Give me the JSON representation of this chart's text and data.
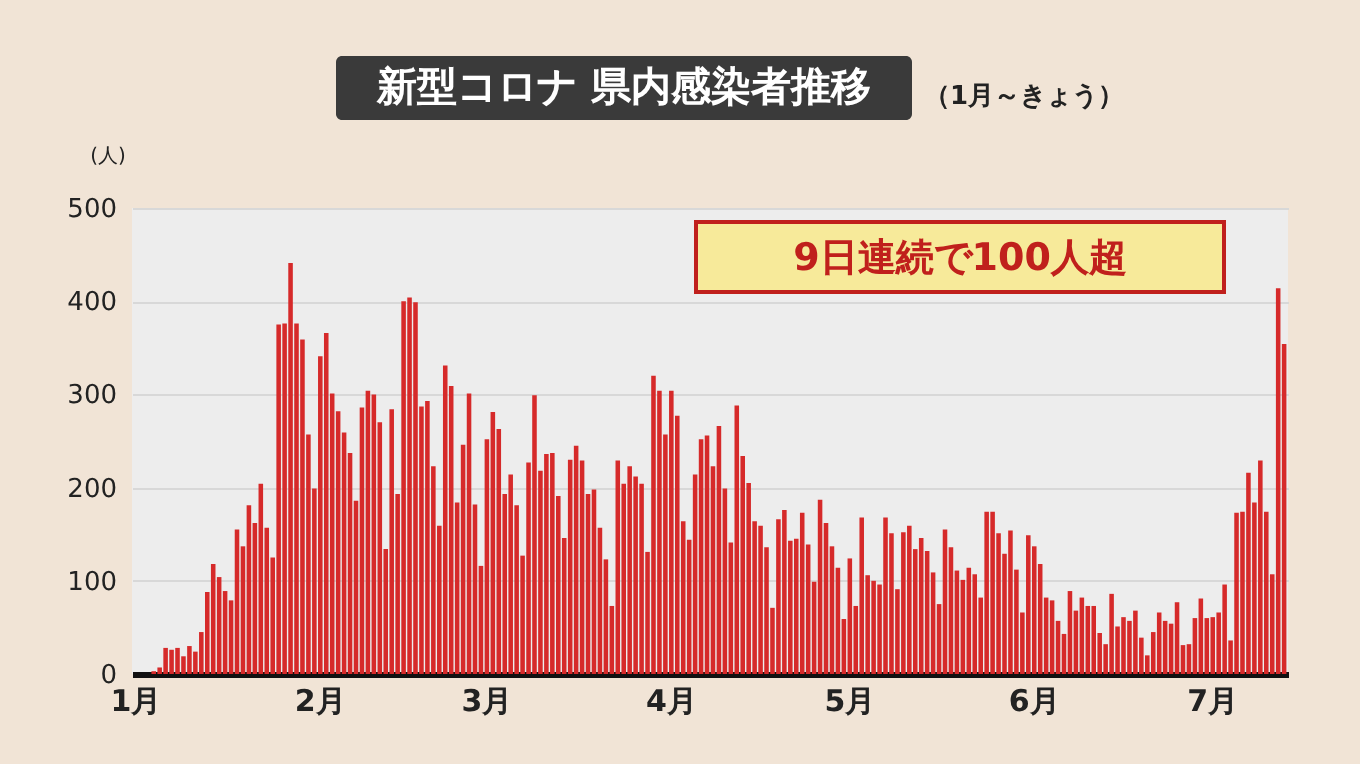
{
  "chart_data": {
    "type": "bar",
    "title": "新型コロナ 県内感染者推移",
    "subtitle": "（1月～きょう）",
    "ylabel": "(人)",
    "annotations": [
      "9日連続で100人超"
    ],
    "categories": [
      "1月",
      null,
      null,
      null,
      null,
      null,
      null,
      null,
      null,
      null,
      null,
      null,
      null,
      null,
      null,
      null,
      null,
      null,
      null,
      null,
      null,
      null,
      null,
      null,
      null,
      null,
      null,
      null,
      null,
      null,
      null,
      "2月",
      null,
      null,
      null,
      null,
      null,
      null,
      null,
      null,
      null,
      null,
      null,
      null,
      null,
      null,
      null,
      null,
      null,
      null,
      null,
      null,
      null,
      null,
      null,
      null,
      null,
      null,
      null,
      "3月",
      null,
      null,
      null,
      null,
      null,
      null,
      null,
      null,
      null,
      null,
      null,
      null,
      null,
      null,
      null,
      null,
      null,
      null,
      null,
      null,
      null,
      null,
      null,
      null,
      null,
      null,
      null,
      null,
      null,
      null,
      "4月",
      null,
      null,
      null,
      null,
      null,
      null,
      null,
      null,
      null,
      null,
      null,
      null,
      null,
      null,
      null,
      null,
      null,
      null,
      null,
      null,
      null,
      null,
      null,
      null,
      null,
      null,
      null,
      null,
      null,
      "5月",
      null,
      null,
      null,
      null,
      null,
      null,
      null,
      null,
      null,
      null,
      null,
      null,
      null,
      null,
      null,
      null,
      null,
      null,
      null,
      null,
      null,
      null,
      null,
      null,
      null,
      null,
      null,
      null,
      null,
      null,
      "6月",
      null,
      null,
      null,
      null,
      null,
      null,
      null,
      null,
      null,
      null,
      null,
      null,
      null,
      null,
      null,
      null,
      null,
      null,
      null,
      null,
      null,
      null,
      null,
      null,
      null,
      null,
      null,
      null,
      null,
      "7月",
      null,
      null,
      null,
      null,
      null,
      null,
      null,
      null,
      null,
      null,
      null,
      null
    ],
    "values": [
      0,
      0,
      0,
      3,
      7,
      28,
      26,
      28,
      19,
      30,
      24,
      45,
      88,
      118,
      104,
      89,
      79,
      155,
      137,
      181,
      162,
      204,
      157,
      125,
      375,
      376,
      441,
      376,
      359,
      257,
      199,
      341,
      366,
      301,
      282,
      259,
      237,
      186,
      286,
      304,
      300,
      270,
      134,
      284,
      193,
      400,
      404,
      399,
      287,
      293,
      223,
      159,
      331,
      309,
      184,
      246,
      301,
      182,
      116,
      252,
      281,
      263,
      193,
      214,
      181,
      127,
      227,
      299,
      218,
      236,
      237,
      191,
      146,
      230,
      245,
      229,
      193,
      198,
      157,
      123,
      73,
      229,
      204,
      223,
      212,
      204,
      131,
      320,
      304,
      257,
      304,
      277,
      164,
      144,
      214,
      252,
      256,
      223,
      266,
      199,
      141,
      288,
      234,
      205,
      164,
      159,
      136,
      71,
      166,
      176,
      143,
      145,
      173,
      139,
      99,
      187,
      162,
      137,
      114,
      59,
      124,
      73,
      168,
      106,
      100,
      96,
      168,
      151,
      91,
      152,
      159,
      134,
      146,
      132,
      109,
      75,
      155,
      136,
      111,
      101,
      114,
      107,
      82,
      174,
      174,
      151,
      129,
      154,
      112,
      66,
      149,
      137,
      118,
      82,
      79,
      57,
      43,
      89,
      68,
      82,
      73,
      73,
      44,
      32,
      86,
      51,
      61,
      57,
      68,
      39,
      20,
      45,
      66,
      57,
      54,
      77,
      31,
      32,
      60,
      81,
      60,
      61,
      66,
      96,
      36,
      173,
      174,
      216,
      184,
      229,
      174,
      107,
      414,
      354
    ],
    "color": "#d62a2a",
    "ylim": [
      0,
      500
    ],
    "yticks": [
      0,
      100,
      200,
      300,
      400,
      500
    ],
    "grid": "y"
  }
}
